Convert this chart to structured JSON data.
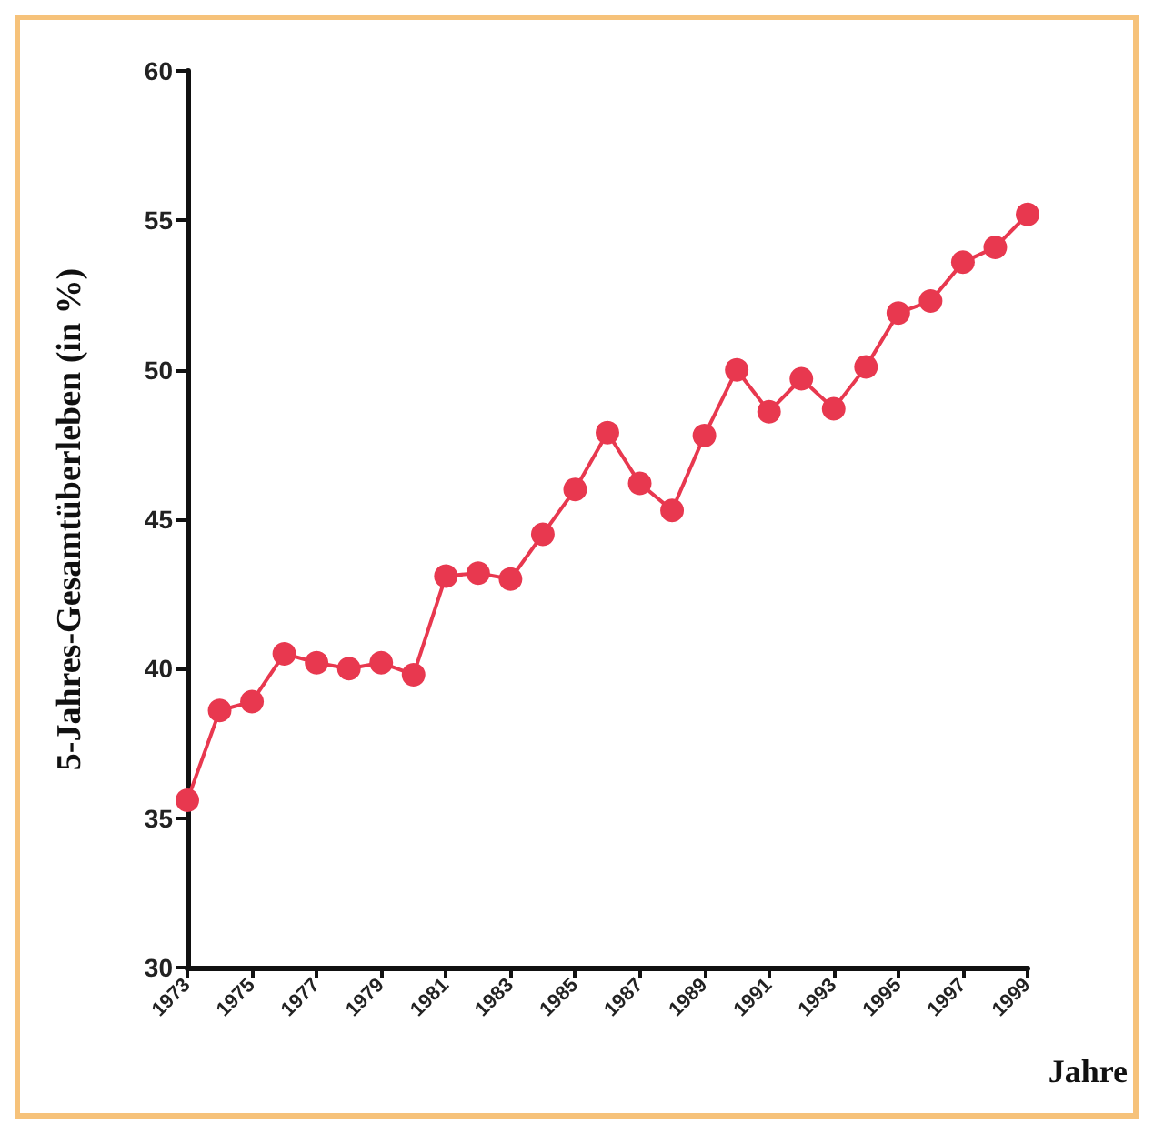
{
  "chart_data": {
    "type": "line",
    "xlabel": "Jahre",
    "ylabel": "5-Jahres-Gesamtüberleben (in %)",
    "x": [
      1973,
      1974,
      1975,
      1976,
      1977,
      1978,
      1979,
      1980,
      1981,
      1982,
      1983,
      1984,
      1985,
      1986,
      1987,
      1988,
      1989,
      1990,
      1991,
      1992,
      1993,
      1994,
      1995,
      1996,
      1997,
      1998,
      1999
    ],
    "series": [
      {
        "color": "#e8384f",
        "values": [
          35.6,
          38.6,
          38.9,
          40.5,
          40.2,
          40.0,
          40.2,
          39.8,
          43.1,
          43.2,
          43.0,
          44.5,
          46.0,
          47.9,
          46.2,
          45.3,
          47.8,
          50.0,
          48.6,
          49.7,
          48.7,
          50.1,
          51.9,
          52.3,
          53.6,
          54.1,
          55.2
        ]
      }
    ],
    "xlim": [
      1973,
      1999
    ],
    "xticks": [
      1973,
      1975,
      1977,
      1979,
      1981,
      1983,
      1985,
      1987,
      1989,
      1991,
      1993,
      1995,
      1997,
      1999
    ],
    "ylim": [
      30,
      60
    ],
    "yticks": [
      30,
      35,
      40,
      45,
      50,
      55,
      60
    ],
    "grid": false,
    "marker": "circle",
    "line_style": "solid"
  }
}
